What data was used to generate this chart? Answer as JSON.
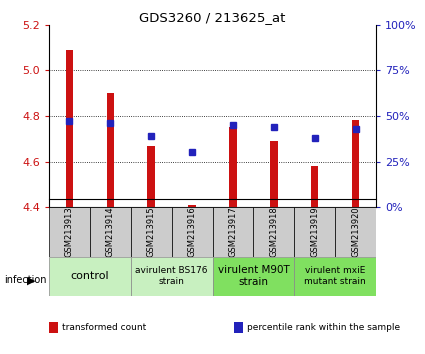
{
  "title": "GDS3260 / 213625_at",
  "samples": [
    "GSM213913",
    "GSM213914",
    "GSM213915",
    "GSM213916",
    "GSM213917",
    "GSM213918",
    "GSM213919",
    "GSM213920"
  ],
  "transformed_counts": [
    5.09,
    4.9,
    4.67,
    4.41,
    4.75,
    4.69,
    4.58,
    4.78
  ],
  "percentile_ranks": [
    47,
    46,
    39,
    30,
    45,
    44,
    38,
    43
  ],
  "ylim_left": [
    4.4,
    5.2
  ],
  "ylim_right": [
    0,
    100
  ],
  "yticks_left": [
    4.4,
    4.6,
    4.8,
    5.0,
    5.2
  ],
  "yticks_right": [
    0,
    25,
    50,
    75,
    100
  ],
  "yticklabels_right": [
    "0%",
    "25%",
    "50%",
    "75%",
    "100%"
  ],
  "bar_color": "#cc1111",
  "percentile_color": "#2222bb",
  "bar_width": 0.18,
  "sample_tick_bg": "#cccccc",
  "legend_items": [
    {
      "label": "transformed count",
      "color": "#cc1111"
    },
    {
      "label": "percentile rank within the sample",
      "color": "#2222bb"
    }
  ],
  "group_info": [
    {
      "label": "control",
      "start": 0,
      "end": 1,
      "color": "#c8f0c0",
      "fontsize": 8
    },
    {
      "label": "avirulent BS176\nstrain",
      "start": 2,
      "end": 3,
      "color": "#c8f0c0",
      "fontsize": 6.5
    },
    {
      "label": "virulent M90T\nstrain",
      "start": 4,
      "end": 5,
      "color": "#80e060",
      "fontsize": 7.5
    },
    {
      "label": "virulent mxiE\nmutant strain",
      "start": 6,
      "end": 7,
      "color": "#80e060",
      "fontsize": 6.5
    }
  ]
}
